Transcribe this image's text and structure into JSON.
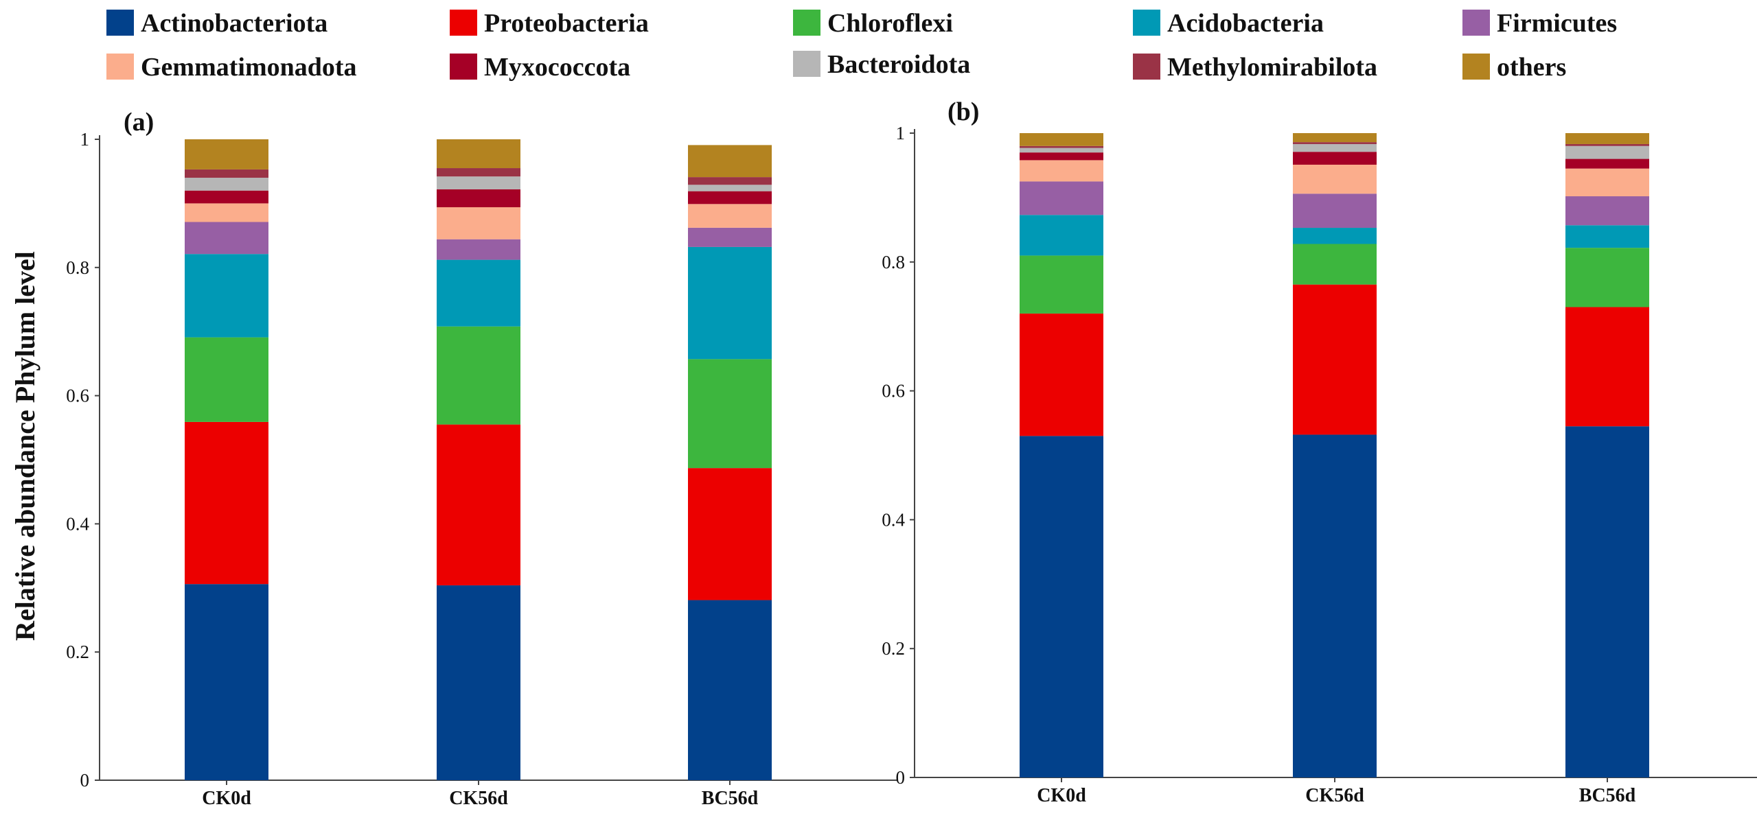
{
  "chart_data": [
    {
      "type": "bar",
      "stacked": true,
      "panel": "(a)",
      "categories": [
        "CK0d",
        "CK56d",
        "BC56d"
      ],
      "ylabel": "Relative abundance Phylum level",
      "ylim": [
        0,
        1
      ],
      "yticks": [
        "0",
        "0.2",
        "0.4",
        "0.6",
        "0.8",
        "1"
      ],
      "series": [
        {
          "name": "Actinobacteriota",
          "values": [
            0.306,
            0.304,
            0.281
          ]
        },
        {
          "name": "Proteobacteria",
          "values": [
            0.253,
            0.251,
            0.206
          ]
        },
        {
          "name": "Chloroflexi",
          "values": [
            0.132,
            0.153,
            0.17
          ]
        },
        {
          "name": "Acidobacteria",
          "values": [
            0.13,
            0.104,
            0.175
          ]
        },
        {
          "name": "Firmicutes",
          "values": [
            0.05,
            0.032,
            0.03
          ]
        },
        {
          "name": "Gemmatimonadota",
          "values": [
            0.029,
            0.05,
            0.037
          ]
        },
        {
          "name": "Myxococcota",
          "values": [
            0.02,
            0.028,
            0.02
          ]
        },
        {
          "name": "Bacteroidota",
          "values": [
            0.02,
            0.02,
            0.01
          ]
        },
        {
          "name": "Methylomirabilota",
          "values": [
            0.013,
            0.013,
            0.012
          ]
        },
        {
          "name": "others",
          "values": [
            0.047,
            0.045,
            0.05
          ]
        }
      ]
    },
    {
      "type": "bar",
      "stacked": true,
      "panel": "(b)",
      "categories": [
        "CK0d",
        "CK56d",
        "BC56d"
      ],
      "ylabel": "",
      "ylim": [
        0,
        1
      ],
      "yticks": [
        "0",
        "0.2",
        "0.4",
        "0.6",
        "0.8",
        "1"
      ],
      "series": [
        {
          "name": "Actinobacteriota",
          "values": [
            0.53,
            0.532,
            0.545
          ]
        },
        {
          "name": "Proteobacteria",
          "values": [
            0.19,
            0.233,
            0.185
          ]
        },
        {
          "name": "Chloroflexi",
          "values": [
            0.09,
            0.063,
            0.092
          ]
        },
        {
          "name": "Acidobacteria",
          "values": [
            0.063,
            0.025,
            0.035
          ]
        },
        {
          "name": "Firmicutes",
          "values": [
            0.052,
            0.053,
            0.045
          ]
        },
        {
          "name": "Gemmatimonadota",
          "values": [
            0.033,
            0.045,
            0.043
          ]
        },
        {
          "name": "Myxococcota",
          "values": [
            0.012,
            0.02,
            0.015
          ]
        },
        {
          "name": "Bacteroidota",
          "values": [
            0.007,
            0.012,
            0.02
          ]
        },
        {
          "name": "Methylomirabilota",
          "values": [
            0.003,
            0.003,
            0.003
          ]
        },
        {
          "name": "others",
          "values": [
            0.02,
            0.014,
            0.017
          ]
        }
      ]
    }
  ],
  "legend": {
    "items": [
      {
        "name": "Actinobacteriota",
        "color": "#02418b"
      },
      {
        "name": "Proteobacteria",
        "color": "#ec0000"
      },
      {
        "name": "Chloroflexi",
        "color": "#3db63e"
      },
      {
        "name": "Acidobacteria",
        "color": "#0099b5"
      },
      {
        "name": "Firmicutes",
        "color": "#975fa4"
      },
      {
        "name": "Gemmatimonadota",
        "color": "#fbad8c"
      },
      {
        "name": "Myxococcota",
        "color": "#a50026"
      },
      {
        "name": "Bacteroidota",
        "color": "#b6b6b6"
      },
      {
        "name": "Methylomirabilota",
        "color": "#9a3346"
      },
      {
        "name": "others",
        "color": "#b38320"
      }
    ]
  }
}
